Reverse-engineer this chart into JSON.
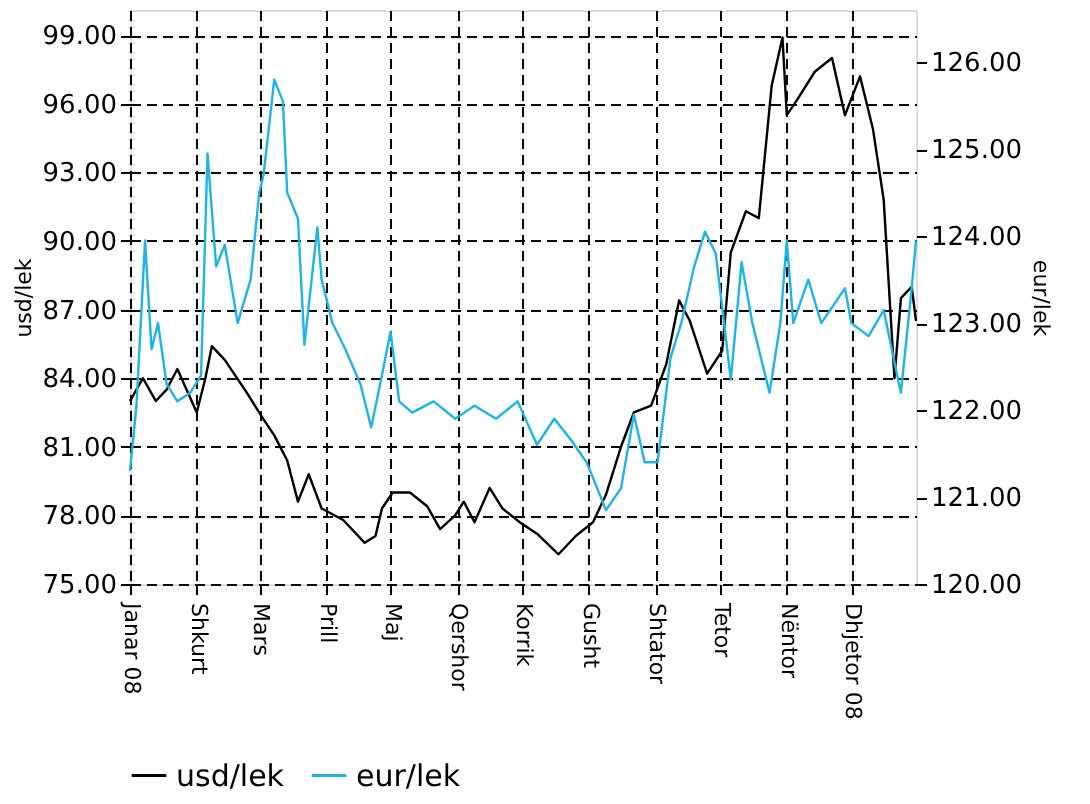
{
  "chart_data": {
    "type": "line",
    "ylabel": "usd/lek",
    "y2label": "eur/lek",
    "xlim": [
      "2008-01-01",
      "2008-12-31"
    ],
    "xticks": [
      {
        "value": "2008-01-01",
        "label": "Janar 08"
      },
      {
        "value": "2008-02-01",
        "label": "Shkurt"
      },
      {
        "value": "2008-03-01",
        "label": "Mars"
      },
      {
        "value": "2008-04-01",
        "label": "Prill"
      },
      {
        "value": "2008-05-01",
        "label": "Maj"
      },
      {
        "value": "2008-06-01",
        "label": "Qershor"
      },
      {
        "value": "2008-07-01",
        "label": "Korrik"
      },
      {
        "value": "2008-08-01",
        "label": "Gusht"
      },
      {
        "value": "2008-09-01",
        "label": "Shtator"
      },
      {
        "value": "2008-10-01",
        "label": "Tetor"
      },
      {
        "value": "2008-11-01",
        "label": "Nëntor"
      },
      {
        "value": "2008-12-01",
        "label": "Dhjetor 08"
      }
    ],
    "ylim": [
      75,
      100.1
    ],
    "yticks": [
      {
        "value": 75,
        "label": "75.00"
      },
      {
        "value": 78,
        "label": "78.00"
      },
      {
        "value": 81,
        "label": "81.00"
      },
      {
        "value": 84,
        "label": "84.00"
      },
      {
        "value": 87,
        "label": "87.00"
      },
      {
        "value": 90,
        "label": "90.00"
      },
      {
        "value": 93,
        "label": "93.00"
      },
      {
        "value": 96,
        "label": "96.00"
      },
      {
        "value": 99,
        "label": "99.00"
      }
    ],
    "y2lim": [
      120,
      126.6
    ],
    "y2ticks": [
      {
        "value": 120,
        "label": "120.00"
      },
      {
        "value": 121,
        "label": "121.00"
      },
      {
        "value": 122,
        "label": "122.00"
      },
      {
        "value": 123,
        "label": "123.00"
      },
      {
        "value": 124,
        "label": "124.00"
      },
      {
        "value": 125,
        "label": "125.00"
      },
      {
        "value": 126,
        "label": "126.00"
      }
    ],
    "grid": true,
    "legend": "bottom",
    "series": [
      {
        "name": "usd/lek",
        "color": "#000000",
        "x": [
          "2008-01-01",
          "2008-01-07",
          "2008-01-13",
          "2008-01-18",
          "2008-01-23",
          "2008-02-01",
          "2008-02-05",
          "2008-02-08",
          "2008-02-14",
          "2008-02-24",
          "2008-03-03",
          "2008-03-08",
          "2008-03-14",
          "2008-03-19",
          "2008-03-24",
          "2008-03-30",
          "2008-04-09",
          "2008-04-19",
          "2008-04-24",
          "2008-04-27",
          "2008-05-02",
          "2008-05-10",
          "2008-05-18",
          "2008-05-24",
          "2008-05-31",
          "2008-06-04",
          "2008-06-09",
          "2008-06-16",
          "2008-06-22",
          "2008-06-30",
          "2008-07-08",
          "2008-07-18",
          "2008-07-26",
          "2008-08-03",
          "2008-08-09",
          "2008-08-16",
          "2008-08-22",
          "2008-08-30",
          "2008-09-06",
          "2008-09-12",
          "2008-09-17",
          "2008-09-25",
          "2008-10-02",
          "2008-10-06",
          "2008-10-13",
          "2008-10-19",
          "2008-10-25",
          "2008-10-30",
          "2008-11-01",
          "2008-11-06",
          "2008-11-14",
          "2008-11-22",
          "2008-11-28",
          "2008-12-05",
          "2008-12-11",
          "2008-12-16",
          "2008-12-19",
          "2008-12-21",
          "2008-12-24",
          "2008-12-29",
          "2008-12-31"
        ],
        "values": [
          83.0,
          84.0,
          83.0,
          83.5,
          84.4,
          82.5,
          84.0,
          85.4,
          84.8,
          83.4,
          82.2,
          81.5,
          80.4,
          78.6,
          79.8,
          78.3,
          77.8,
          76.8,
          77.1,
          78.3,
          79.0,
          79.0,
          78.4,
          77.4,
          78.0,
          78.6,
          77.7,
          79.2,
          78.3,
          77.7,
          77.2,
          76.3,
          77.1,
          77.7,
          78.9,
          81.0,
          82.5,
          82.8,
          84.6,
          87.4,
          86.5,
          84.2,
          85.2,
          89.5,
          91.3,
          91.0,
          96.8,
          98.9,
          95.5,
          96.2,
          97.4,
          98.0,
          95.5,
          97.2,
          94.9,
          91.8,
          87.1,
          84.0,
          87.5,
          88.0,
          86.5
        ]
      },
      {
        "name": "eur/lek",
        "color": "#1eb4e8",
        "axis": "y2",
        "x": [
          "2008-01-01",
          "2008-01-04",
          "2008-01-08",
          "2008-01-11",
          "2008-01-14",
          "2008-01-18",
          "2008-01-23",
          "2008-01-29",
          "2008-02-03",
          "2008-02-06",
          "2008-02-10",
          "2008-02-14",
          "2008-02-20",
          "2008-02-26",
          "2008-03-01",
          "2008-03-03",
          "2008-03-08",
          "2008-03-12",
          "2008-03-14",
          "2008-03-19",
          "2008-03-22",
          "2008-03-28",
          "2008-03-30",
          "2008-04-04",
          "2008-04-10",
          "2008-04-17",
          "2008-04-22",
          "2008-04-27",
          "2008-05-01",
          "2008-05-05",
          "2008-05-11",
          "2008-05-21",
          "2008-05-31",
          "2008-06-09",
          "2008-06-19",
          "2008-06-29",
          "2008-07-08",
          "2008-07-16",
          "2008-07-24",
          "2008-07-31",
          "2008-08-05",
          "2008-08-09",
          "2008-08-16",
          "2008-08-22",
          "2008-08-27",
          "2008-09-02",
          "2008-09-08",
          "2008-09-13",
          "2008-09-19",
          "2008-09-24",
          "2008-09-29",
          "2008-10-06",
          "2008-10-11",
          "2008-10-16",
          "2008-10-24",
          "2008-10-29",
          "2008-11-01",
          "2008-11-04",
          "2008-11-11",
          "2008-11-17",
          "2008-11-28",
          "2008-12-01",
          "2008-12-09",
          "2008-12-16",
          "2008-12-21",
          "2008-12-24",
          "2008-12-29",
          "2008-12-31"
        ],
        "values": [
          121.3,
          122.05,
          123.95,
          122.7,
          123.0,
          122.3,
          122.1,
          122.2,
          122.4,
          124.95,
          123.65,
          123.9,
          123.0,
          123.5,
          124.5,
          124.7,
          125.8,
          125.55,
          124.5,
          124.2,
          122.75,
          124.1,
          123.5,
          123.0,
          122.7,
          122.3,
          121.8,
          122.4,
          122.9,
          122.1,
          121.97,
          122.1,
          121.9,
          122.05,
          121.9,
          122.1,
          121.6,
          121.9,
          121.65,
          121.4,
          121.1,
          120.85,
          121.1,
          121.95,
          121.4,
          121.4,
          122.6,
          123.0,
          123.65,
          124.05,
          123.8,
          122.35,
          123.7,
          123.0,
          122.2,
          123.0,
          123.95,
          123.0,
          123.5,
          123.0,
          123.4,
          123.0,
          122.85,
          123.15,
          122.55,
          122.2,
          123.4,
          123.95
        ]
      }
    ]
  }
}
